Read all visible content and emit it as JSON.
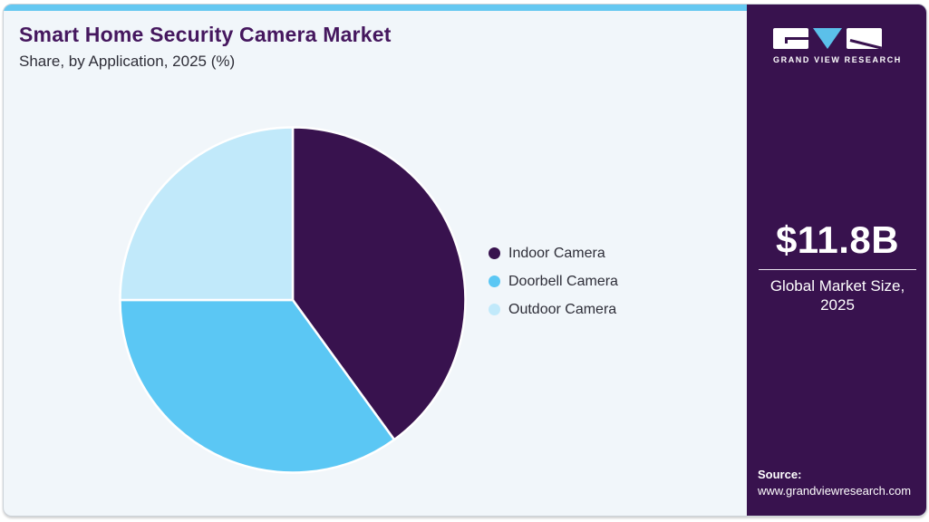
{
  "page": {
    "title": "Smart Home Security Camera Market",
    "subtitle": "Share, by Application, 2025 (%)"
  },
  "chart_data": {
    "type": "pie",
    "title": "Smart Home Security Camera Market Share, by Application, 2025 (%)",
    "categories": [
      "Indoor Camera",
      "Doorbell Camera",
      "Outdoor Camera"
    ],
    "values": [
      40,
      35,
      25
    ],
    "unit": "%",
    "colors": [
      "#38124e",
      "#5bc7f4",
      "#c1e9fa"
    ],
    "start_angle_deg": 0,
    "direction": "clockwise",
    "slice_border_color": "#ffffff",
    "legend_position": "right"
  },
  "legend": {
    "items": [
      {
        "label": "Indoor Camera",
        "color": "#38124e"
      },
      {
        "label": "Doorbell Camera",
        "color": "#5bc7f4"
      },
      {
        "label": "Outdoor Camera",
        "color": "#c1e9fa"
      }
    ]
  },
  "sidebar": {
    "background": "#38124e",
    "accent": "#5bc0ea",
    "logo_text": "GRAND VIEW RESEARCH",
    "market_size_value": "$11.8B",
    "market_size_label_line1": "Global Market Size,",
    "market_size_label_line2": "2025",
    "source_label": "Source:",
    "source_url": "www.grandviewresearch.com"
  }
}
